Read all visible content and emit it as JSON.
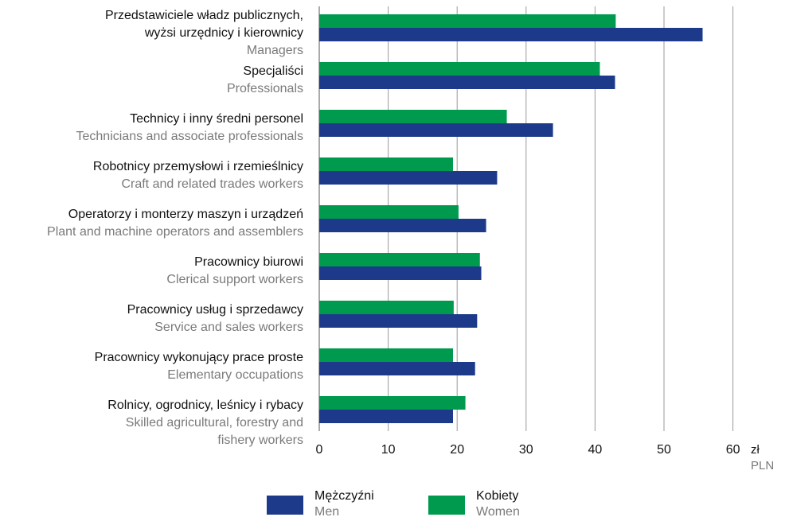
{
  "chart_data": {
    "type": "bar",
    "orientation": "horizontal",
    "unit_label": "zł",
    "unit_label_en": "PLN",
    "xlim": [
      0,
      60
    ],
    "x_ticks": [
      0,
      10,
      20,
      30,
      40,
      50,
      60
    ],
    "grid": true,
    "legend_position": "bottom",
    "categories": [
      {
        "pl": [
          "Przedstawiciele władz publicznych,",
          "wyżsi urzędnicy i kierownicy"
        ],
        "en": [
          "Managers"
        ]
      },
      {
        "pl": [
          "Specjaliści"
        ],
        "en": [
          "Professionals"
        ]
      },
      {
        "pl": [
          "Technicy i inny średni personel"
        ],
        "en": [
          "Technicians and associate professionals"
        ]
      },
      {
        "pl": [
          "Robotnicy przemysłowi i rzemieślnicy"
        ],
        "en": [
          "Craft and related trades workers"
        ]
      },
      {
        "pl": [
          "Operatorzy i monterzy maszyn i urządzeń"
        ],
        "en": [
          "Plant and machine operators and assemblers"
        ]
      },
      {
        "pl": [
          "Pracownicy biurowi"
        ],
        "en": [
          "Clerical support workers"
        ]
      },
      {
        "pl": [
          "Pracownicy usług i sprzedawcy"
        ],
        "en": [
          "Service and sales workers"
        ]
      },
      {
        "pl": [
          "Pracownicy wykonujący prace proste"
        ],
        "en": [
          "Elementary occupations"
        ]
      },
      {
        "pl": [
          "Rolnicy, ogrodnicy, leśnicy i rybacy"
        ],
        "en": [
          "Skilled agricultural, forestry and",
          "fishery workers"
        ]
      }
    ],
    "series": [
      {
        "name": "Kobiety",
        "name_en": "Women",
        "color": "#009a4e",
        "values": [
          43.0,
          40.7,
          27.2,
          19.4,
          20.2,
          23.3,
          19.5,
          19.4,
          21.2
        ]
      },
      {
        "name": "Mężczyźni",
        "name_en": "Men",
        "color": "#1d3a8a",
        "values": [
          55.6,
          42.9,
          33.9,
          25.8,
          24.2,
          23.5,
          22.9,
          22.6,
          19.4
        ]
      }
    ]
  },
  "legend": {
    "men": {
      "pl": "Mężczyźni",
      "en": "Men",
      "color": "#1d3a8a"
    },
    "women": {
      "pl": "Kobiety",
      "en": "Women",
      "color": "#009a4e"
    }
  }
}
